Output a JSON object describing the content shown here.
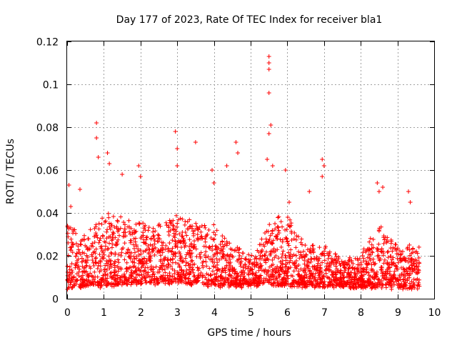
{
  "chart_data": {
    "type": "scatter",
    "title": "Day 177 of 2023, Rate Of TEC Index for receiver bla1",
    "xlabel": "GPS time / hours",
    "ylabel": "ROTI / TECUs",
    "xlim": [
      0,
      10
    ],
    "ylim": [
      0,
      0.12
    ],
    "x_ticks": [
      0,
      1,
      2,
      3,
      4,
      5,
      6,
      7,
      8,
      9,
      10
    ],
    "x_tick_labels": [
      "0",
      "1",
      "2",
      "3",
      "4",
      "5",
      "6",
      "7",
      "8",
      "9",
      "10"
    ],
    "y_ticks": [
      0,
      0.02,
      0.04,
      0.06,
      0.08,
      0.1,
      0.12
    ],
    "y_tick_labels": [
      "0",
      "0.02",
      "0.04",
      "0.06",
      "0.08",
      "0.1",
      "0.12"
    ],
    "grid": true,
    "marker": "+",
    "color": "#ff0000",
    "series": [
      {
        "name": "ROTI bla1",
        "x_range_hours": [
          0,
          9.6
        ],
        "band_estimate": {
          "x": [
            0,
            0.5,
            1,
            1.5,
            2,
            2.5,
            3,
            3.5,
            4,
            4.5,
            5,
            5.5,
            6,
            6.5,
            7,
            7.5,
            8,
            8.5,
            9,
            9.5
          ],
          "typical_low": [
            0.005,
            0.006,
            0.006,
            0.007,
            0.007,
            0.007,
            0.008,
            0.007,
            0.006,
            0.006,
            0.006,
            0.007,
            0.006,
            0.006,
            0.006,
            0.006,
            0.005,
            0.006,
            0.005,
            0.005
          ],
          "typical_high": [
            0.035,
            0.03,
            0.04,
            0.038,
            0.035,
            0.035,
            0.04,
            0.035,
            0.035,
            0.025,
            0.02,
            0.035,
            0.04,
            0.025,
            0.025,
            0.018,
            0.02,
            0.035,
            0.025,
            0.025
          ]
        },
        "peaks": [
          {
            "x": 0.05,
            "y": 0.053
          },
          {
            "x": 0.1,
            "y": 0.043
          },
          {
            "x": 0.35,
            "y": 0.051
          },
          {
            "x": 0.8,
            "y": 0.082
          },
          {
            "x": 0.8,
            "y": 0.075
          },
          {
            "x": 0.85,
            "y": 0.066
          },
          {
            "x": 1.1,
            "y": 0.068
          },
          {
            "x": 1.15,
            "y": 0.063
          },
          {
            "x": 1.5,
            "y": 0.058
          },
          {
            "x": 1.95,
            "y": 0.062
          },
          {
            "x": 2.0,
            "y": 0.057
          },
          {
            "x": 2.95,
            "y": 0.078
          },
          {
            "x": 3.0,
            "y": 0.07
          },
          {
            "x": 3.0,
            "y": 0.062
          },
          {
            "x": 3.5,
            "y": 0.073
          },
          {
            "x": 3.95,
            "y": 0.06
          },
          {
            "x": 4.0,
            "y": 0.054
          },
          {
            "x": 4.35,
            "y": 0.062
          },
          {
            "x": 4.6,
            "y": 0.073
          },
          {
            "x": 4.65,
            "y": 0.068
          },
          {
            "x": 5.5,
            "y": 0.113
          },
          {
            "x": 5.5,
            "y": 0.11
          },
          {
            "x": 5.5,
            "y": 0.107
          },
          {
            "x": 5.5,
            "y": 0.096
          },
          {
            "x": 5.55,
            "y": 0.081
          },
          {
            "x": 5.5,
            "y": 0.077
          },
          {
            "x": 5.45,
            "y": 0.065
          },
          {
            "x": 5.6,
            "y": 0.062
          },
          {
            "x": 5.95,
            "y": 0.06
          },
          {
            "x": 6.05,
            "y": 0.045
          },
          {
            "x": 6.6,
            "y": 0.05
          },
          {
            "x": 6.95,
            "y": 0.065
          },
          {
            "x": 7.0,
            "y": 0.062
          },
          {
            "x": 6.95,
            "y": 0.057
          },
          {
            "x": 8.45,
            "y": 0.054
          },
          {
            "x": 8.5,
            "y": 0.05
          },
          {
            "x": 8.6,
            "y": 0.052
          },
          {
            "x": 9.3,
            "y": 0.05
          },
          {
            "x": 9.35,
            "y": 0.045
          }
        ]
      }
    ]
  }
}
